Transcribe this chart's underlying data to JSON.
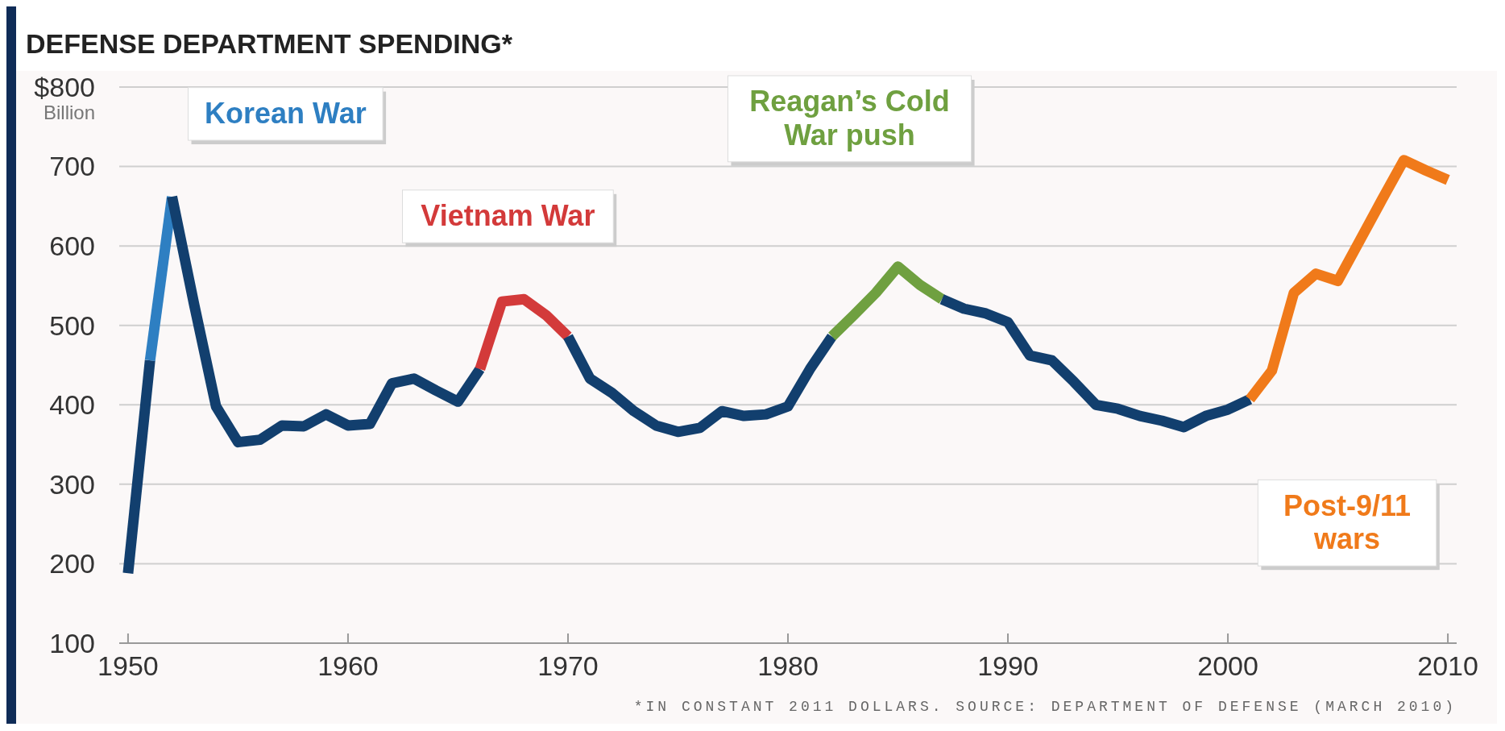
{
  "chart_data": {
    "type": "line",
    "title": "DEFENSE DEPARTMENT SPENDING*",
    "ylabel": "Billion",
    "annotations": [
      "*IN CONSTANT 2011 DOLLARS. SOURCE: DEPARTMENT OF DEFENSE (MARCH 2010)"
    ],
    "xlim": [
      1949.6,
      2010.4
    ],
    "xticks": [
      1950,
      1960,
      1970,
      1980,
      1990,
      2000,
      2010
    ],
    "ylim": [
      100,
      800
    ],
    "yticks": [
      100,
      200,
      300,
      400,
      500,
      600,
      700,
      {
        "value": 800,
        "label": "$800"
      }
    ],
    "grid": "y",
    "line_style": "solid",
    "marker": "none",
    "series": [
      {
        "color": "#123f6e",
        "x": [
          1950,
          1951
        ],
        "values": [
          188,
          456
        ]
      },
      {
        "name": "Korean War",
        "color": "#2e7fc2",
        "x": [
          1951,
          1952
        ],
        "values": [
          456,
          662
        ]
      },
      {
        "color": "#123f6e",
        "x": [
          1952,
          1953,
          1954,
          1955,
          1956,
          1957,
          1958,
          1959,
          1960,
          1961,
          1962,
          1963,
          1964,
          1965,
          1966
        ],
        "values": [
          662,
          527,
          398,
          353,
          356,
          374,
          373,
          388,
          374,
          376,
          427,
          433,
          418,
          404,
          445
        ]
      },
      {
        "name": "Vietnam War",
        "color": "#d33a3a",
        "x": [
          1966,
          1967,
          1968,
          1969,
          1970
        ],
        "values": [
          445,
          530,
          533,
          513,
          486
        ]
      },
      {
        "color": "#123f6e",
        "x": [
          1970,
          1971,
          1972,
          1973,
          1974,
          1975,
          1976,
          1977,
          1978,
          1979,
          1980,
          1981,
          1982
        ],
        "values": [
          486,
          433,
          415,
          392,
          374,
          366,
          371,
          392,
          386,
          388,
          398,
          445,
          486
        ]
      },
      {
        "name": "Reagan’s Cold War push",
        "color": "#6fa040",
        "x": [
          1982,
          1983,
          1984,
          1985,
          1986,
          1987
        ],
        "values": [
          486,
          513,
          541,
          574,
          551,
          533
        ]
      },
      {
        "color": "#123f6e",
        "x": [
          1987,
          1988,
          1989,
          1990,
          1991,
          1992,
          1993,
          1994,
          1995,
          1996,
          1997,
          1998,
          1999,
          2000,
          2001
        ],
        "values": [
          533,
          521,
          515,
          504,
          462,
          456,
          429,
          400,
          395,
          386,
          380,
          372,
          386,
          394,
          407
        ]
      },
      {
        "name": "Post-9/11 wars",
        "color": "#f07a1a",
        "x": [
          2001,
          2002,
          2003,
          2004,
          2005,
          2006,
          2007,
          2008,
          2009,
          2010
        ],
        "values": [
          407,
          443,
          541,
          565,
          556,
          607,
          658,
          708,
          695,
          683
        ]
      }
    ]
  }
}
